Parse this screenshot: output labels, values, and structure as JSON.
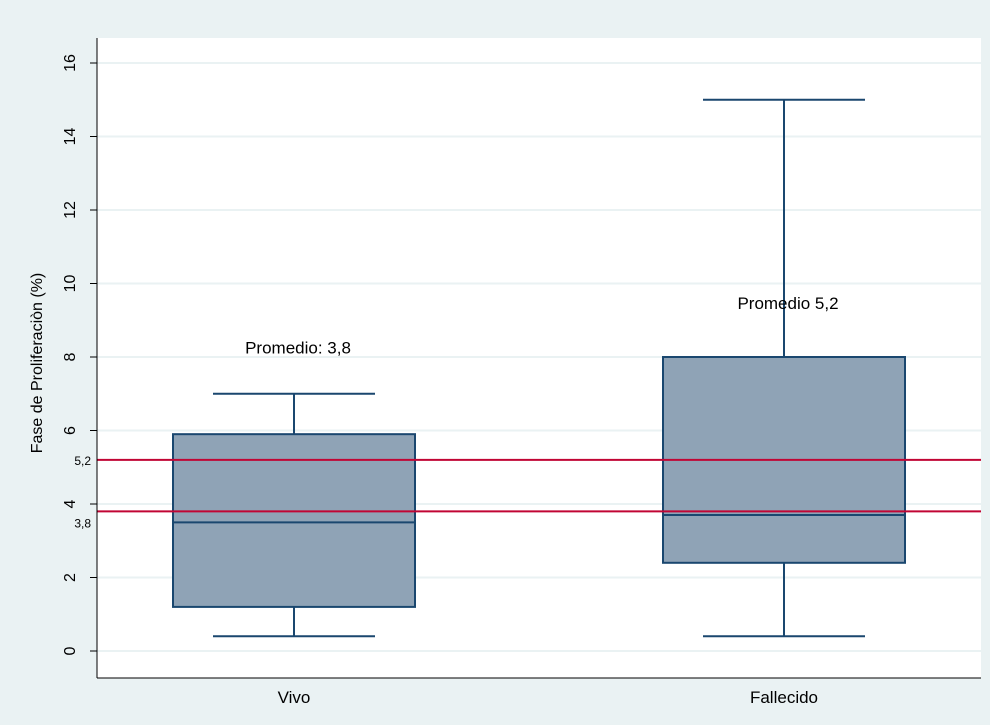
{
  "chart_data": {
    "type": "box",
    "ylabel": "Fase de Proliferaciòn (%)",
    "xlabel": "",
    "ylim": [
      0,
      16
    ],
    "yticks": [
      0,
      2,
      4,
      6,
      8,
      10,
      12,
      14,
      16
    ],
    "grid": true,
    "categories": [
      "Vivo",
      "Fallecido"
    ],
    "boxes": [
      {
        "category": "Vivo",
        "whisker_low": 0.4,
        "q1": 1.2,
        "median": 3.5,
        "q3": 5.9,
        "whisker_high": 7.0
      },
      {
        "category": "Fallecido",
        "whisker_low": 0.4,
        "q1": 2.4,
        "median": 3.7,
        "q3": 8.0,
        "whisker_high": 15.0
      }
    ],
    "reference_lines": [
      {
        "value": 5.2,
        "label": "5,2"
      },
      {
        "value": 3.8,
        "label": "3,8"
      }
    ],
    "annotations": [
      {
        "text": "Promedio: 3,8",
        "category": "Vivo",
        "y": 8.1
      },
      {
        "text": "Promedio 5,2",
        "category": "Fallecido",
        "y": 9.3
      }
    ],
    "colors": {
      "background_outer": "#eaf2f3",
      "plot_background": "#ffffff",
      "box_fill": "#8fa3b6",
      "box_stroke": "#1a476f",
      "reference_line": "#c10534",
      "grid": "#eaf2f3",
      "axis": "#000000"
    }
  }
}
